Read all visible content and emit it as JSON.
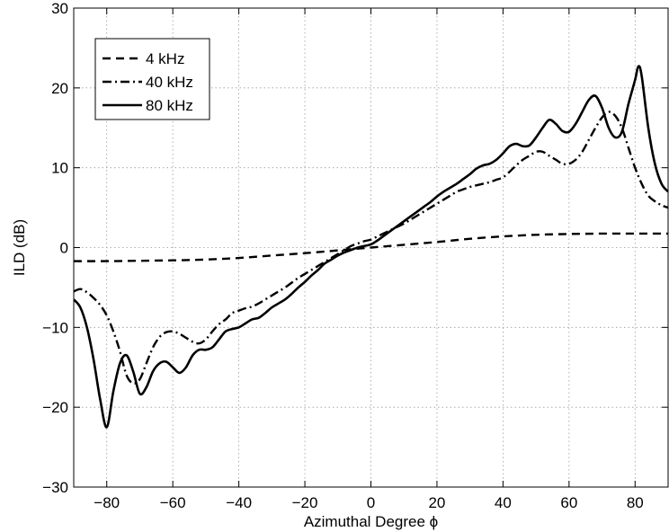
{
  "chart_data": {
    "type": "line",
    "title": "",
    "xlabel": "Azimuthal Degree ϕ",
    "ylabel": "ILD (dB)",
    "xlim": [
      -90,
      90
    ],
    "ylim": [
      -30,
      30
    ],
    "xticks": [
      -80,
      -60,
      -40,
      -20,
      0,
      20,
      40,
      60,
      80
    ],
    "yticks": [
      -30,
      -20,
      -10,
      0,
      10,
      20,
      30
    ],
    "xtick_labels": [
      "−80",
      "−60",
      "−40",
      "−20",
      "0",
      "20",
      "40",
      "60",
      "80"
    ],
    "ytick_labels": [
      "−30",
      "−20",
      "−10",
      "0",
      "10",
      "20",
      "30"
    ],
    "grid": true,
    "legend_position": "top-left",
    "series": [
      {
        "name": "4 kHz",
        "style": "dashed",
        "color": "#000000",
        "x": [
          -90,
          -80,
          -70,
          -60,
          -50,
          -40,
          -30,
          -20,
          -10,
          0,
          10,
          20,
          30,
          40,
          50,
          60,
          70,
          80,
          90
        ],
        "y": [
          -1.7,
          -1.7,
          -1.65,
          -1.6,
          -1.5,
          -1.3,
          -1.0,
          -0.7,
          -0.35,
          0,
          0.35,
          0.7,
          1.1,
          1.4,
          1.6,
          1.7,
          1.75,
          1.75,
          1.75
        ]
      },
      {
        "name": "40 kHz",
        "style": "dashdot",
        "color": "#000000",
        "x": [
          -90,
          -88,
          -86,
          -84,
          -82,
          -80,
          -78,
          -76,
          -74,
          -72,
          -70,
          -68,
          -66,
          -64,
          -62,
          -60,
          -58,
          -56,
          -54,
          -52,
          -50,
          -48,
          -46,
          -44,
          -42,
          -40,
          -38,
          -36,
          -34,
          -32,
          -30,
          -28,
          -26,
          -24,
          -22,
          -20,
          -18,
          -16,
          -14,
          -12,
          -10,
          -8,
          -6,
          -4,
          -2,
          0,
          2,
          4,
          6,
          8,
          10,
          12,
          14,
          16,
          18,
          20,
          22,
          24,
          26,
          28,
          30,
          32,
          34,
          36,
          38,
          40,
          42,
          44,
          46,
          48,
          50,
          52,
          54,
          56,
          58,
          60,
          62,
          64,
          66,
          68,
          70,
          72,
          74,
          76,
          78,
          80,
          82,
          84,
          86,
          88,
          90
        ],
        "y": [
          -5.5,
          -5.2,
          -5.6,
          -6.3,
          -7.2,
          -8.5,
          -10.5,
          -13.0,
          -16.0,
          -17.0,
          -16.5,
          -14.5,
          -12.5,
          -11.2,
          -10.6,
          -10.5,
          -10.8,
          -11.3,
          -11.8,
          -12.0,
          -11.5,
          -10.5,
          -9.6,
          -9.0,
          -8.2,
          -7.9,
          -7.6,
          -7.4,
          -7.0,
          -6.5,
          -6.0,
          -5.5,
          -5.0,
          -4.4,
          -3.8,
          -3.3,
          -2.8,
          -2.3,
          -1.8,
          -1.3,
          -0.8,
          -0.3,
          0.2,
          0.5,
          0.8,
          1.0,
          1.4,
          1.8,
          2.2,
          2.6,
          3.0,
          3.5,
          4.0,
          4.5,
          5.0,
          5.5,
          6.0,
          6.5,
          7.0,
          7.3,
          7.6,
          7.8,
          8.0,
          8.2,
          8.5,
          8.8,
          9.5,
          10.3,
          11.0,
          11.5,
          12.0,
          12.0,
          11.5,
          11.0,
          10.5,
          10.5,
          11.0,
          12.0,
          13.5,
          15.0,
          16.3,
          17.0,
          16.5,
          15.0,
          12.5,
          10.0,
          8.0,
          6.5,
          5.8,
          5.3,
          5.0
        ]
      },
      {
        "name": "80 kHz",
        "style": "solid",
        "color": "#000000",
        "x": [
          -90,
          -88,
          -86,
          -84,
          -82,
          -80,
          -78,
          -76,
          -74,
          -72,
          -70,
          -68,
          -66,
          -64,
          -62,
          -60,
          -58,
          -56,
          -54,
          -52,
          -50,
          -48,
          -46,
          -44,
          -42,
          -40,
          -38,
          -36,
          -34,
          -32,
          -30,
          -28,
          -26,
          -24,
          -22,
          -20,
          -18,
          -16,
          -14,
          -12,
          -10,
          -8,
          -6,
          -4,
          -2,
          0,
          2,
          4,
          6,
          8,
          10,
          12,
          14,
          16,
          18,
          20,
          22,
          24,
          26,
          28,
          30,
          32,
          34,
          36,
          38,
          40,
          42,
          44,
          46,
          48,
          50,
          52,
          54,
          56,
          58,
          60,
          62,
          64,
          66,
          68,
          70,
          72,
          74,
          76,
          78,
          80,
          81,
          82,
          84,
          86,
          88,
          90
        ],
        "y": [
          -6.5,
          -7.5,
          -10.0,
          -14.0,
          -19.0,
          -22.5,
          -18.0,
          -14.5,
          -13.5,
          -15.5,
          -18.3,
          -17.5,
          -15.5,
          -14.5,
          -14.3,
          -15.0,
          -15.7,
          -15.0,
          -13.5,
          -12.8,
          -12.8,
          -12.5,
          -11.5,
          -10.5,
          -10.2,
          -10.0,
          -9.5,
          -9.0,
          -8.8,
          -8.2,
          -7.5,
          -7.0,
          -6.5,
          -5.8,
          -5.0,
          -4.3,
          -3.5,
          -2.8,
          -2.0,
          -1.5,
          -1.0,
          -0.6,
          -0.3,
          0.0,
          0.2,
          0.4,
          0.9,
          1.5,
          2.1,
          2.7,
          3.3,
          3.9,
          4.5,
          5.1,
          5.7,
          6.4,
          7.0,
          7.5,
          8.0,
          8.6,
          9.2,
          9.9,
          10.3,
          10.5,
          11.0,
          11.8,
          12.7,
          13.0,
          12.7,
          12.8,
          13.8,
          15.0,
          16.0,
          15.5,
          14.6,
          14.5,
          15.5,
          17.0,
          18.5,
          19.0,
          17.5,
          15.0,
          13.8,
          14.5,
          18.0,
          21.0,
          22.7,
          21.5,
          15.0,
          10.5,
          8.0,
          7.0
        ]
      }
    ]
  }
}
